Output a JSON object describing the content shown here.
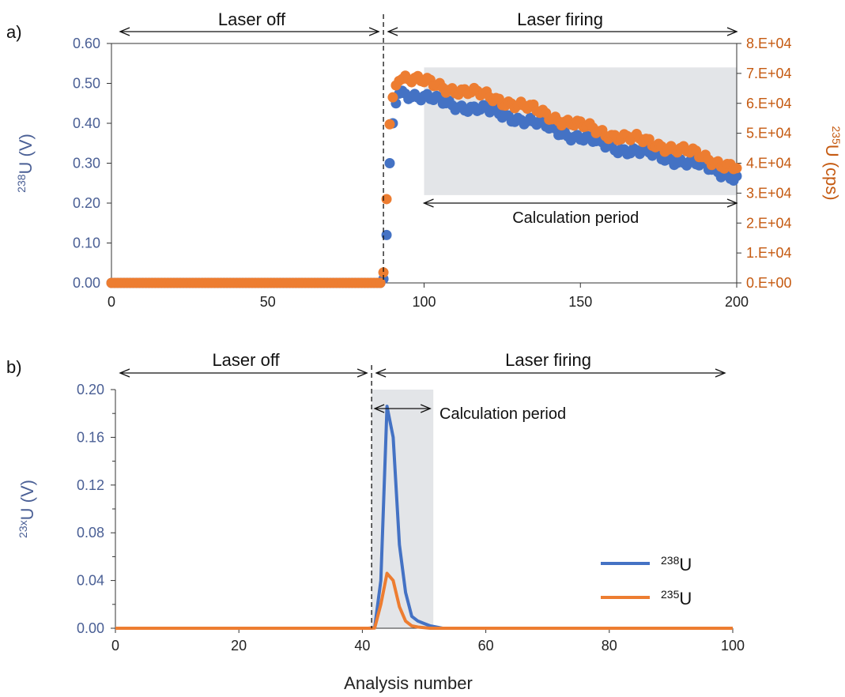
{
  "colors": {
    "u238": "#4472c4",
    "u235": "#ed7d31",
    "left_axis_text": "#4a5f95",
    "right_axis_text": "#c55a11",
    "shade": "#e3e5e8",
    "axis": "#333333"
  },
  "chart_data": [
    {
      "panel": "a)",
      "type": "scatter",
      "annotations": {
        "laser_off": "Laser off",
        "laser_firing": "Laser firing",
        "calculation_period": "Calculation period",
        "laser_on_at": 87,
        "calc_period_x": [
          100,
          200
        ]
      },
      "x_axis": {
        "range": [
          0,
          200
        ],
        "ticks": [
          "0",
          "50",
          "100",
          "150",
          "200"
        ],
        "tick_values": [
          0,
          50,
          100,
          150,
          200
        ]
      },
      "y_left": {
        "label_sup": "238",
        "label_main": "U (V)",
        "range": [
          0,
          0.6
        ],
        "ticks": [
          "0.00",
          "0.10",
          "0.20",
          "0.30",
          "0.40",
          "0.50",
          "0.60"
        ],
        "tick_values": [
          0,
          0.1,
          0.2,
          0.3,
          0.4,
          0.5,
          0.6
        ]
      },
      "y_right": {
        "label_sup": "235",
        "label_main": "U (cps)",
        "range": [
          0,
          80000
        ],
        "ticks": [
          "0.E+00",
          "1.E+04",
          "2.E+04",
          "3.E+04",
          "4.E+04",
          "5.E+04",
          "6.E+04",
          "7.E+04",
          "8.E+04"
        ],
        "tick_values": [
          0,
          10000,
          20000,
          30000,
          40000,
          50000,
          60000,
          70000,
          80000
        ]
      },
      "shade_y_left": [
        0.22,
        0.54
      ],
      "series_238_rise": {
        "x": [
          87,
          88,
          89,
          90,
          91
        ],
        "y": [
          0.01,
          0.12,
          0.3,
          0.4,
          0.45
        ]
      },
      "series_235_rise": {
        "x": [
          87,
          88,
          89,
          90,
          91
        ],
        "y": [
          3500,
          28000,
          53000,
          62000,
          66000
        ]
      },
      "series_238_plateau": {
        "start": 92,
        "end": 200,
        "y_start": 0.485,
        "y_end": 0.265
      },
      "series_235_plateau": {
        "start": 92,
        "end": 200,
        "y_start": 70000,
        "y_end": 38500
      }
    },
    {
      "panel": "b)",
      "type": "line",
      "annotations": {
        "laser_off": "Laser off",
        "laser_firing": "Laser firing",
        "calculation_period": "Calculation period",
        "laser_on_at": 41.5,
        "calc_period_x": [
          41.5,
          51.5
        ]
      },
      "x_axis": {
        "label": "Analysis number",
        "range": [
          0,
          100
        ],
        "ticks": [
          "0",
          "20",
          "40",
          "60",
          "80",
          "100"
        ],
        "tick_values": [
          0,
          20,
          40,
          60,
          80,
          100
        ]
      },
      "y_axis": {
        "label_sup": "23x",
        "label_main": "U (V)",
        "range": [
          0,
          0.2
        ],
        "ticks": [
          "0.00",
          "0.04",
          "0.08",
          "0.12",
          "0.16",
          "0.20"
        ],
        "tick_values": [
          0,
          0.04,
          0.08,
          0.12,
          0.16,
          0.2
        ]
      },
      "legend": {
        "position": "bottom-right"
      },
      "series": [
        {
          "name_sup": "238",
          "name_main": "U",
          "x": [
            0,
            41,
            42,
            43,
            44,
            45,
            46,
            47,
            48,
            49,
            50,
            51,
            52,
            53,
            100
          ],
          "y": [
            0,
            0,
            0.0005,
            0.04,
            0.186,
            0.16,
            0.07,
            0.03,
            0.01,
            0.006,
            0.004,
            0.002,
            0.001,
            0,
            0
          ]
        },
        {
          "name_sup": "235",
          "name_main": "U",
          "x": [
            0,
            41,
            42,
            43,
            44,
            45,
            46,
            47,
            48,
            49,
            50,
            51,
            100
          ],
          "y": [
            0,
            0,
            0.0002,
            0.02,
            0.046,
            0.04,
            0.018,
            0.006,
            0.002,
            0.001,
            0.0005,
            0,
            0
          ]
        }
      ]
    }
  ]
}
